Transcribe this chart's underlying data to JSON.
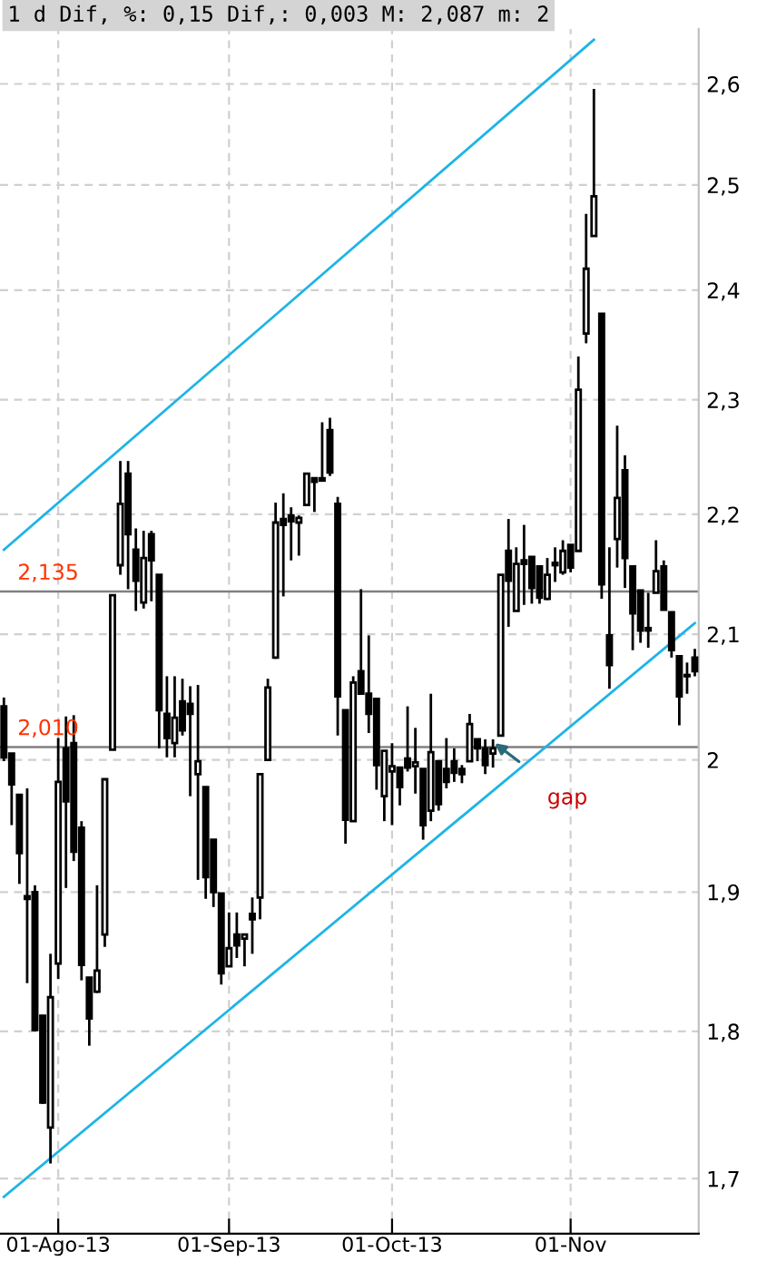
{
  "chart_data": {
    "type": "candlestick",
    "title": "1 d Dif, %: 0,15 Dif,: 0,003 M: 2,087 m: 2",
    "categories": [
      null,
      null,
      null,
      null,
      null,
      null,
      null,
      "01-Ago-13",
      null,
      null,
      null,
      null,
      null,
      null,
      null,
      null,
      null,
      null,
      null,
      null,
      null,
      null,
      null,
      null,
      null,
      null,
      null,
      null,
      null,
      "01-Sep-13",
      null,
      null,
      null,
      null,
      null,
      null,
      null,
      null,
      null,
      null,
      null,
      null,
      null,
      null,
      null,
      null,
      null,
      null,
      null,
      null,
      "01-Oct-13",
      null,
      null,
      null,
      null,
      null,
      null,
      null,
      null,
      null,
      null,
      null,
      null,
      null,
      null,
      null,
      null,
      null,
      null,
      null,
      null,
      null,
      null,
      "01-Nov",
      null,
      null,
      null,
      null,
      null,
      null,
      null,
      null,
      null,
      null,
      null,
      null,
      null,
      null,
      null,
      null
    ],
    "ohlc": [
      [
        2.042,
        2.049,
        1.999,
        2.002
      ],
      [
        2.005,
        2.005,
        1.95,
        1.981
      ],
      [
        1.973,
        1.973,
        1.906,
        1.929
      ],
      [
        1.897,
        1.978,
        1.834,
        1.895
      ],
      [
        1.9,
        1.905,
        1.8,
        1.801
      ],
      [
        1.811,
        1.811,
        1.75,
        1.751
      ],
      [
        1.734,
        1.855,
        1.71,
        1.824
      ],
      [
        1.848,
        2.017,
        1.837,
        1.983
      ],
      [
        2.009,
        2.034,
        1.903,
        1.968
      ],
      [
        2.013,
        2.035,
        1.923,
        1.93
      ],
      [
        1.948,
        1.953,
        1.836,
        1.847
      ],
      [
        1.838,
        1.838,
        1.79,
        1.809
      ],
      [
        1.828,
        1.905,
        1.827,
        1.843
      ],
      [
        1.869,
        1.985,
        1.86,
        1.985
      ],
      [
        2.008,
        2.132,
        2.008,
        2.132
      ],
      [
        2.157,
        2.246,
        2.149,
        2.209
      ],
      [
        2.235,
        2.246,
        2.137,
        2.183
      ],
      [
        2.17,
        2.188,
        2.119,
        2.144
      ],
      [
        2.126,
        2.186,
        2.121,
        2.163
      ],
      [
        2.183,
        2.186,
        2.127,
        2.161
      ],
      [
        2.149,
        2.149,
        2.009,
        2.039
      ],
      [
        2.036,
        2.066,
        2.002,
        2.017
      ],
      [
        2.013,
        2.066,
        2.002,
        2.033
      ],
      [
        2.046,
        2.064,
        2.019,
        2.023
      ],
      [
        2.044,
        2.058,
        1.972,
        2.036
      ],
      [
        1.989,
        2.059,
        1.909,
        1.999
      ],
      [
        1.979,
        1.979,
        1.895,
        1.911
      ],
      [
        1.939,
        1.939,
        1.889,
        1.9
      ],
      [
        1.899,
        1.899,
        1.833,
        1.841
      ],
      [
        1.846,
        1.885,
        1.846,
        1.859
      ],
      [
        1.869,
        1.885,
        1.852,
        1.861
      ],
      [
        1.866,
        1.869,
        1.846,
        1.869
      ],
      [
        1.884,
        1.896,
        1.855,
        1.88
      ],
      [
        1.896,
        1.989,
        1.88,
        1.989
      ],
      [
        2.0,
        2.064,
        2.0,
        2.057
      ],
      [
        2.081,
        2.21,
        2.08,
        2.193
      ],
      [
        2.196,
        2.218,
        2.131,
        2.191
      ],
      [
        2.199,
        2.206,
        2.161,
        2.194
      ],
      [
        2.193,
        2.199,
        2.165,
        2.197
      ],
      [
        2.208,
        2.235,
        2.208,
        2.235
      ],
      [
        2.231,
        2.231,
        2.202,
        2.228
      ],
      [
        2.229,
        2.28,
        2.228,
        2.231
      ],
      [
        2.273,
        2.284,
        2.233,
        2.236
      ],
      [
        2.209,
        2.215,
        2.019,
        2.05
      ],
      [
        2.039,
        2.039,
        1.936,
        1.954
      ],
      [
        1.953,
        2.066,
        1.953,
        2.061
      ],
      [
        2.07,
        2.137,
        2.052,
        2.052
      ],
      [
        2.052,
        2.099,
        2.021,
        2.036
      ],
      [
        2.048,
        2.048,
        1.977,
        1.996
      ],
      [
        1.972,
        2.007,
        1.953,
        2.007
      ],
      [
        1.991,
        2.013,
        1.95,
        1.995
      ],
      [
        1.994,
        1.994,
        1.965,
        1.979
      ],
      [
        2.001,
        2.042,
        1.991,
        1.994
      ],
      [
        1.995,
        2.025,
        1.974,
        1.998
      ],
      [
        1.993,
        1.993,
        1.939,
        1.95
      ],
      [
        1.961,
        2.052,
        1.953,
        2.006
      ],
      [
        1.999,
        1.999,
        1.961,
        1.966
      ],
      [
        1.993,
        2.017,
        1.978,
        1.983
      ],
      [
        1.999,
        2.009,
        1.983,
        1.99
      ],
      [
        1.993,
        1.996,
        1.982,
        1.989
      ],
      [
        1.999,
        2.036,
        1.999,
        2.028
      ],
      [
        2.016,
        2.016,
        1.999,
        2.009
      ],
      [
        2.009,
        2.016,
        1.989,
        1.996
      ],
      [
        2.005,
        2.016,
        1.994,
        2.009
      ],
      [
        2.019,
        2.149,
        2.019,
        2.149
      ],
      [
        2.169,
        2.196,
        2.106,
        2.144
      ],
      [
        2.119,
        2.172,
        2.119,
        2.158
      ],
      [
        2.161,
        2.191,
        2.124,
        2.158
      ],
      [
        2.164,
        2.164,
        2.125,
        2.138
      ],
      [
        2.156,
        2.156,
        2.125,
        2.13
      ],
      [
        2.129,
        2.163,
        2.128,
        2.149
      ],
      [
        2.159,
        2.172,
        2.143,
        2.157
      ],
      [
        2.151,
        2.178,
        2.149,
        2.169
      ],
      [
        2.174,
        2.174,
        2.151,
        2.155
      ],
      [
        2.169,
        2.339,
        2.169,
        2.309
      ],
      [
        2.36,
        2.472,
        2.351,
        2.42
      ],
      [
        2.451,
        2.595,
        2.451,
        2.489
      ],
      [
        2.378,
        2.378,
        2.129,
        2.141
      ],
      [
        2.099,
        2.172,
        2.056,
        2.075
      ],
      [
        2.179,
        2.277,
        2.155,
        2.214
      ],
      [
        2.238,
        2.251,
        2.138,
        2.163
      ],
      [
        2.156,
        2.156,
        2.087,
        2.117
      ],
      [
        2.136,
        2.136,
        2.093,
        2.103
      ],
      [
        2.105,
        2.134,
        2.089,
        2.103
      ],
      [
        2.134,
        2.178,
        2.134,
        2.152
      ],
      [
        2.156,
        2.161,
        2.12,
        2.12
      ],
      [
        2.118,
        2.118,
        2.081,
        2.087
      ],
      [
        2.082,
        2.082,
        2.027,
        2.05
      ],
      [
        2.066,
        2.077,
        2.052,
        2.067
      ],
      [
        2.081,
        2.088,
        2.066,
        2.07
      ]
    ],
    "series": [
      {
        "type": "line",
        "values": [
          2.17,
          null,
          null,
          null,
          null,
          null,
          null,
          null,
          null,
          null,
          null,
          null,
          null,
          null,
          null,
          null,
          null,
          null,
          null,
          null,
          null,
          null,
          null,
          null,
          null,
          null,
          null,
          null,
          null,
          null,
          null,
          null,
          null,
          null,
          null,
          null,
          null,
          null,
          null,
          null,
          null,
          null,
          null,
          null,
          null,
          null,
          null,
          null,
          null,
          null,
          null,
          null,
          null,
          null,
          null,
          null,
          null,
          null,
          null,
          null,
          null,
          null,
          null,
          null,
          null,
          null,
          null,
          null,
          null,
          null,
          null,
          null,
          null,
          null,
          null,
          null,
          2.645,
          null,
          null,
          null,
          null,
          null,
          null,
          null,
          null,
          null,
          null,
          null,
          null,
          null
        ],
        "color": "#1eb4e6"
      },
      {
        "type": "line",
        "values": [
          1.688,
          null,
          null,
          null,
          null,
          null,
          null,
          null,
          null,
          null,
          null,
          null,
          null,
          null,
          null,
          null,
          null,
          null,
          null,
          null,
          null,
          null,
          null,
          null,
          null,
          null,
          null,
          null,
          null,
          null,
          null,
          null,
          null,
          null,
          null,
          null,
          null,
          null,
          null,
          null,
          null,
          null,
          null,
          null,
          null,
          null,
          null,
          null,
          null,
          null,
          null,
          null,
          null,
          null,
          null,
          null,
          null,
          null,
          null,
          null,
          null,
          null,
          null,
          null,
          null,
          null,
          null,
          null,
          null,
          null,
          null,
          null,
          null,
          null,
          null,
          null,
          null,
          null,
          null,
          null,
          null,
          null,
          null,
          null,
          null,
          null,
          null,
          null,
          null,
          2.109
        ],
        "color": "#1eb4e6"
      }
    ],
    "log": true,
    "ylim": [
      1.664,
      2.656
    ],
    "yticks": [
      {
        "value": 1.7,
        "label": "1,7"
      },
      {
        "value": 1.8,
        "label": "1,8"
      },
      {
        "value": 1.9,
        "label": "1,9"
      },
      2,
      {
        "value": 2.1,
        "label": "2,1"
      },
      {
        "value": 2.2,
        "label": "2,2"
      },
      {
        "value": 2.3,
        "label": "2,3"
      },
      {
        "value": 2.4,
        "label": "2,4"
      },
      {
        "value": 2.5,
        "label": "2,5"
      },
      {
        "value": 2.6,
        "label": "2,6"
      }
    ],
    "ref_lines": [
      {
        "axis": "y",
        "value": 2.135,
        "label": "2,135",
        "color": "#808080"
      },
      {
        "axis": "y",
        "value": 2.01,
        "label": "2,010",
        "color": "#808080"
      }
    ],
    "annotations": [
      {
        "text": "gap",
        "y": 2.013
      }
    ],
    "grid": true,
    "legend": false
  }
}
